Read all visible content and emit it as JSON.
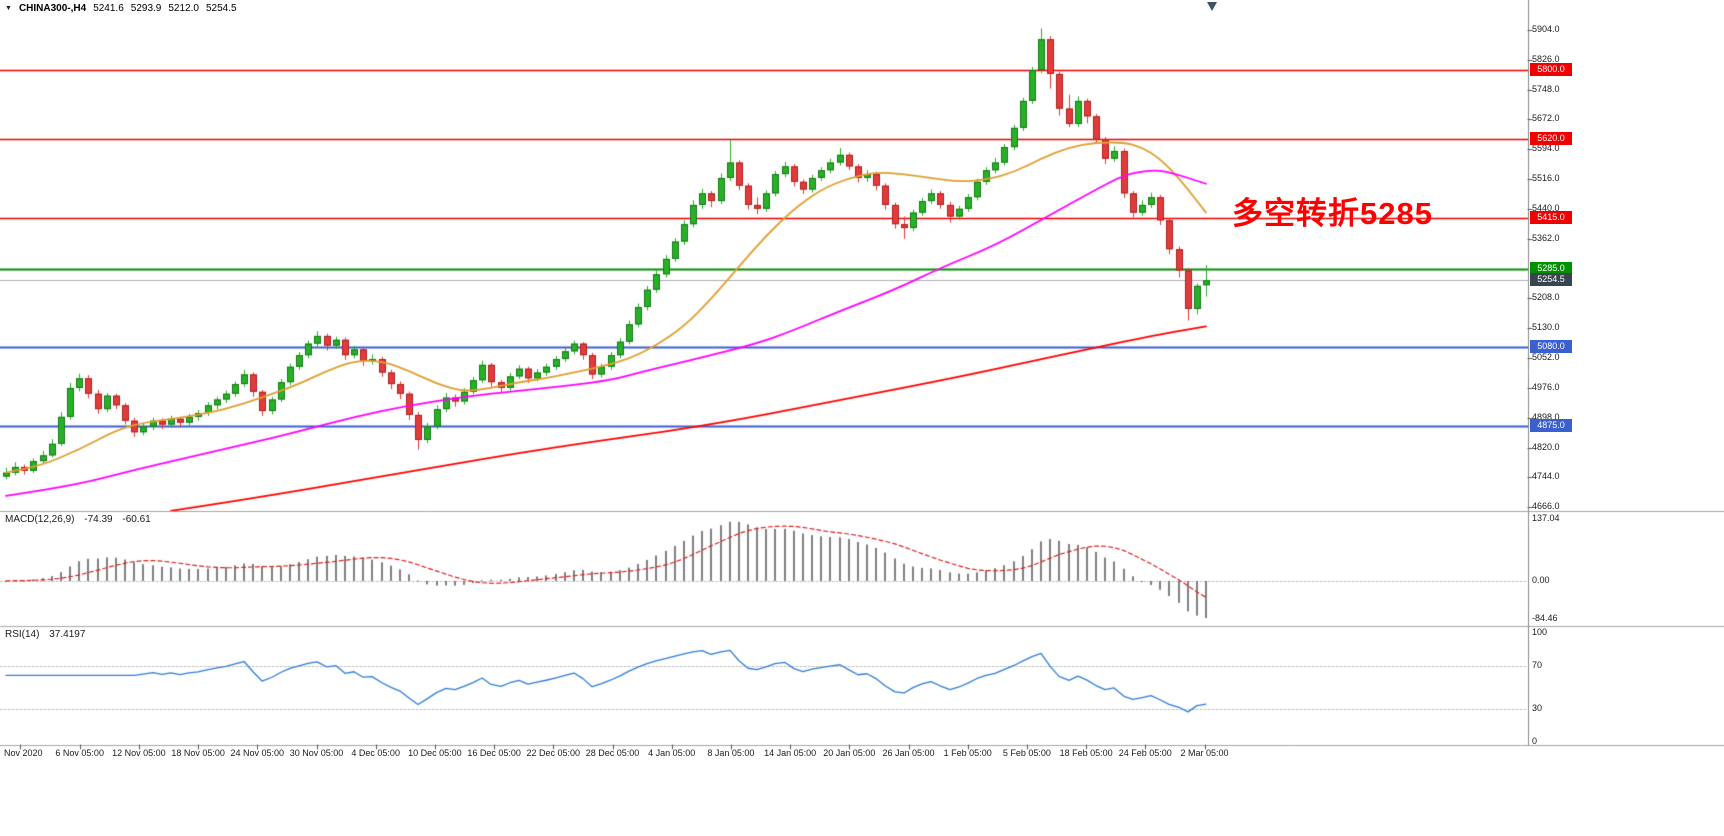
{
  "header": {
    "title": "CHINA300-,H4",
    "open": "5241.6",
    "high": "5293.9",
    "low": "5212.0",
    "close": "5254.5"
  },
  "colors": {
    "bull": "#28b028",
    "bull_border": "#157a15",
    "bear": "#e23b3b",
    "bear_border": "#b02020",
    "current_price_line": "#b0b0b0",
    "separator": "#a6a6a6",
    "axis_line": "#888888",
    "grid_dotted": "#c0c0c0"
  },
  "chart_data": {
    "type": "candlestick",
    "symbol": "CHINA300-",
    "timeframe": "H4",
    "price_range": {
      "min": 4666.0,
      "max": 5904.0
    },
    "y_ticks": [
      "5904.0",
      "5826.0",
      "5748.0",
      "5672.0",
      "5594.0",
      "5516.0",
      "5440.0",
      "5362.0",
      "5208.0",
      "5130.0",
      "5052.0",
      "4976.0",
      "4898.0",
      "4820.0",
      "4744.0",
      "4666.0"
    ],
    "x_labels": [
      "Nov 2020",
      "6 Nov 05:00",
      "12 Nov 05:00",
      "18 Nov 05:00",
      "24 Nov 05:00",
      "30 Nov 05:00",
      "4 Dec 05:00",
      "10 Dec 05:00",
      "16 Dec 05:00",
      "22 Dec 05:00",
      "28 Dec 05:00",
      "4 Jan 05:00",
      "8 Jan 05:00",
      "14 Jan 05:00",
      "20 Jan 05:00",
      "26 Jan 05:00",
      "1 Feb 05:00",
      "5 Feb 05:00",
      "18 Feb 05:00",
      "24 Feb 05:00",
      "2 Mar 05:00"
    ],
    "current_price": {
      "value": 5254.5,
      "label": "5254.5",
      "badge_color": "#36454f"
    },
    "levels": [
      {
        "price": 5800.0,
        "label": "5800.0",
        "color": "#f00000",
        "width": 1.5
      },
      {
        "price": 5620.0,
        "label": "5620.0",
        "color": "#f00000",
        "width": 1.5
      },
      {
        "price": 5415.0,
        "label": "5415.0",
        "color": "#f00000",
        "width": 1.5
      },
      {
        "price": 5285.0,
        "label": "5285.0",
        "color": "#009000",
        "width": 2
      },
      {
        "price": 5080.0,
        "label": "5080.0",
        "color": "#3a5fd0",
        "width": 1.8
      },
      {
        "price": 4875.0,
        "label": "4875.0",
        "color": "#3a5fd0",
        "width": 1.8
      }
    ],
    "annotation": {
      "text": "多空转折5285",
      "color": "#ff0000"
    },
    "candles": [
      [
        4745,
        4768,
        4738,
        4755
      ],
      [
        4755,
        4782,
        4748,
        4770
      ],
      [
        4770,
        4776,
        4750,
        4760
      ],
      [
        4760,
        4792,
        4754,
        4785
      ],
      [
        4785,
        4812,
        4778,
        4800
      ],
      [
        4800,
        4842,
        4795,
        4830
      ],
      [
        4830,
        4912,
        4824,
        4900
      ],
      [
        4900,
        4988,
        4893,
        4975
      ],
      [
        4975,
        5012,
        4966,
        5000
      ],
      [
        5000,
        5008,
        4948,
        4960
      ],
      [
        4960,
        4970,
        4908,
        4920
      ],
      [
        4920,
        4962,
        4912,
        4955
      ],
      [
        4955,
        4960,
        4920,
        4930
      ],
      [
        4930,
        4936,
        4880,
        4890
      ],
      [
        4890,
        4898,
        4848,
        4860
      ],
      [
        4860,
        4884,
        4852,
        4875
      ],
      [
        4875,
        4898,
        4866,
        4890
      ],
      [
        4890,
        4896,
        4868,
        4880
      ],
      [
        4880,
        4903,
        4872,
        4895
      ],
      [
        4895,
        4900,
        4872,
        4885
      ],
      [
        4885,
        4908,
        4878,
        4900
      ],
      [
        4900,
        4918,
        4890,
        4910
      ],
      [
        4910,
        4938,
        4902,
        4930
      ],
      [
        4930,
        4952,
        4920,
        4945
      ],
      [
        4945,
        4968,
        4936,
        4960
      ],
      [
        4960,
        4992,
        4952,
        4985
      ],
      [
        4985,
        5022,
        4978,
        5010
      ],
      [
        5010,
        5015,
        4952,
        4965
      ],
      [
        4965,
        4970,
        4902,
        4915
      ],
      [
        4915,
        4952,
        4906,
        4945
      ],
      [
        4945,
        4998,
        4938,
        4990
      ],
      [
        4990,
        5038,
        4982,
        5030
      ],
      [
        5030,
        5068,
        5022,
        5060
      ],
      [
        5060,
        5098,
        5052,
        5090
      ],
      [
        5090,
        5122,
        5082,
        5110
      ],
      [
        5110,
        5116,
        5072,
        5085
      ],
      [
        5085,
        5108,
        5076,
        5100
      ],
      [
        5100,
        5106,
        5048,
        5060
      ],
      [
        5060,
        5084,
        5052,
        5075
      ],
      [
        5075,
        5080,
        5032,
        5045
      ],
      [
        5045,
        5062,
        5036,
        5050
      ],
      [
        5050,
        5056,
        5004,
        5015
      ],
      [
        5015,
        5022,
        4972,
        4985
      ],
      [
        4985,
        4992,
        4946,
        4960
      ],
      [
        4960,
        4966,
        4892,
        4905
      ],
      [
        4905,
        4912,
        4815,
        4840
      ],
      [
        4840,
        4884,
        4832,
        4875
      ],
      [
        4875,
        4930,
        4868,
        4920
      ],
      [
        4920,
        4962,
        4912,
        4950
      ],
      [
        4950,
        4958,
        4926,
        4940
      ],
      [
        4940,
        4974,
        4932,
        4965
      ],
      [
        4965,
        5004,
        4958,
        4995
      ],
      [
        4995,
        5046,
        4988,
        5035
      ],
      [
        5035,
        5040,
        4978,
        4990
      ],
      [
        4990,
        4996,
        4962,
        4975
      ],
      [
        4975,
        5014,
        4968,
        5005
      ],
      [
        5005,
        5034,
        4998,
        5025
      ],
      [
        5025,
        5030,
        4988,
        5000
      ],
      [
        5000,
        5024,
        4992,
        5015
      ],
      [
        5015,
        5038,
        5006,
        5030
      ],
      [
        5030,
        5058,
        5022,
        5050
      ],
      [
        5050,
        5078,
        5042,
        5070
      ],
      [
        5070,
        5098,
        5062,
        5090
      ],
      [
        5090,
        5094,
        5048,
        5060
      ],
      [
        5060,
        5066,
        4998,
        5010
      ],
      [
        5010,
        5038,
        5002,
        5030
      ],
      [
        5030,
        5068,
        5022,
        5060
      ],
      [
        5060,
        5104,
        5052,
        5095
      ],
      [
        5095,
        5150,
        5088,
        5140
      ],
      [
        5140,
        5194,
        5132,
        5185
      ],
      [
        5185,
        5240,
        5176,
        5230
      ],
      [
        5230,
        5280,
        5222,
        5270
      ],
      [
        5270,
        5320,
        5262,
        5310
      ],
      [
        5310,
        5364,
        5302,
        5355
      ],
      [
        5355,
        5410,
        5346,
        5400
      ],
      [
        5400,
        5462,
        5392,
        5450
      ],
      [
        5450,
        5492,
        5440,
        5480
      ],
      [
        5480,
        5486,
        5444,
        5460
      ],
      [
        5460,
        5532,
        5452,
        5520
      ],
      [
        5520,
        5618,
        5512,
        5560
      ],
      [
        5560,
        5566,
        5488,
        5500
      ],
      [
        5500,
        5506,
        5438,
        5450
      ],
      [
        5450,
        5470,
        5426,
        5440
      ],
      [
        5440,
        5488,
        5432,
        5480
      ],
      [
        5480,
        5538,
        5472,
        5530
      ],
      [
        5530,
        5562,
        5522,
        5550
      ],
      [
        5550,
        5556,
        5498,
        5510
      ],
      [
        5510,
        5516,
        5478,
        5490
      ],
      [
        5490,
        5528,
        5482,
        5520
      ],
      [
        5520,
        5548,
        5512,
        5540
      ],
      [
        5540,
        5570,
        5532,
        5560
      ],
      [
        5560,
        5598,
        5552,
        5580
      ],
      [
        5580,
        5586,
        5540,
        5550
      ],
      [
        5550,
        5556,
        5508,
        5520
      ],
      [
        5520,
        5540,
        5510,
        5530
      ],
      [
        5530,
        5536,
        5488,
        5500
      ],
      [
        5500,
        5506,
        5438,
        5450
      ],
      [
        5450,
        5456,
        5388,
        5400
      ],
      [
        5400,
        5420,
        5362,
        5390
      ],
      [
        5390,
        5438,
        5382,
        5430
      ],
      [
        5430,
        5468,
        5422,
        5460
      ],
      [
        5460,
        5490,
        5452,
        5480
      ],
      [
        5480,
        5486,
        5440,
        5450
      ],
      [
        5450,
        5458,
        5404,
        5420
      ],
      [
        5420,
        5448,
        5412,
        5440
      ],
      [
        5440,
        5478,
        5432,
        5470
      ],
      [
        5470,
        5518,
        5462,
        5510
      ],
      [
        5510,
        5548,
        5502,
        5540
      ],
      [
        5540,
        5572,
        5532,
        5560
      ],
      [
        5560,
        5608,
        5552,
        5600
      ],
      [
        5600,
        5658,
        5592,
        5650
      ],
      [
        5650,
        5728,
        5642,
        5720
      ],
      [
        5720,
        5808,
        5712,
        5800
      ],
      [
        5800,
        5908,
        5792,
        5880
      ],
      [
        5880,
        5888,
        5752,
        5790
      ],
      [
        5790,
        5796,
        5682,
        5700
      ],
      [
        5700,
        5736,
        5652,
        5660
      ],
      [
        5660,
        5732,
        5652,
        5720
      ],
      [
        5720,
        5726,
        5662,
        5680
      ],
      [
        5680,
        5686,
        5608,
        5620
      ],
      [
        5620,
        5626,
        5556,
        5570
      ],
      [
        5570,
        5602,
        5562,
        5590
      ],
      [
        5590,
        5596,
        5468,
        5480
      ],
      [
        5480,
        5486,
        5418,
        5430
      ],
      [
        5430,
        5462,
        5422,
        5450
      ],
      [
        5450,
        5482,
        5442,
        5470
      ],
      [
        5470,
        5476,
        5398,
        5410
      ],
      [
        5410,
        5416,
        5322,
        5335
      ],
      [
        5335,
        5342,
        5262,
        5280
      ],
      [
        5280,
        5286,
        5150,
        5180
      ],
      [
        5180,
        5246,
        5166,
        5240
      ],
      [
        5241.6,
        5293.9,
        5212.0,
        5254.5
      ]
    ],
    "moving_averages": [
      {
        "name": "ma-fast",
        "color": "#e0a030",
        "width": 1.8,
        "points": [
          [
            0,
            4755
          ],
          [
            4,
            4775
          ],
          [
            8,
            4815
          ],
          [
            12,
            4865
          ],
          [
            15,
            4885
          ],
          [
            20,
            4900
          ],
          [
            24,
            4920
          ],
          [
            28,
            4950
          ],
          [
            32,
            4985
          ],
          [
            35,
            5020
          ],
          [
            38,
            5045
          ],
          [
            41,
            5045
          ],
          [
            44,
            5020
          ],
          [
            47,
            4985
          ],
          [
            50,
            4965
          ],
          [
            53,
            4975
          ],
          [
            56,
            4990
          ],
          [
            59,
            5000
          ],
          [
            62,
            5015
          ],
          [
            65,
            5030
          ],
          [
            68,
            5050
          ],
          [
            71,
            5085
          ],
          [
            74,
            5135
          ],
          [
            77,
            5205
          ],
          [
            80,
            5290
          ],
          [
            83,
            5370
          ],
          [
            86,
            5440
          ],
          [
            89,
            5490
          ],
          [
            92,
            5520
          ],
          [
            95,
            5535
          ],
          [
            98,
            5530
          ],
          [
            101,
            5520
          ],
          [
            104,
            5510
          ],
          [
            107,
            5515
          ],
          [
            110,
            5535
          ],
          [
            113,
            5570
          ],
          [
            116,
            5600
          ],
          [
            119,
            5612
          ],
          [
            122,
            5612
          ],
          [
            124,
            5600
          ],
          [
            126,
            5570
          ],
          [
            128,
            5520
          ],
          [
            131,
            5430
          ]
        ]
      },
      {
        "name": "ma-medium",
        "color": "#ff00ff",
        "width": 1.8,
        "points": [
          [
            0,
            4695
          ],
          [
            8,
            4725
          ],
          [
            14,
            4762
          ],
          [
            20,
            4795
          ],
          [
            26,
            4828
          ],
          [
            32,
            4862
          ],
          [
            38,
            4900
          ],
          [
            44,
            4930
          ],
          [
            50,
            4952
          ],
          [
            56,
            4968
          ],
          [
            61,
            4980
          ],
          [
            66,
            4995
          ],
          [
            70,
            5020
          ],
          [
            75,
            5048
          ],
          [
            82,
            5090
          ],
          [
            86,
            5125
          ],
          [
            91,
            5175
          ],
          [
            97,
            5230
          ],
          [
            102,
            5286
          ],
          [
            108,
            5345
          ],
          [
            113,
            5411
          ],
          [
            119,
            5490
          ],
          [
            122,
            5528
          ],
          [
            125,
            5541
          ],
          [
            127,
            5536
          ],
          [
            131,
            5505
          ]
        ]
      },
      {
        "name": "ma-slow",
        "color": "#ff0000",
        "width": 1.8,
        "points": [
          [
            18,
            4656
          ],
          [
            30,
            4700
          ],
          [
            45,
            4762
          ],
          [
            60,
            4822
          ],
          [
            76,
            4875
          ],
          [
            90,
            4938
          ],
          [
            105,
            5008
          ],
          [
            115,
            5060
          ],
          [
            125,
            5110
          ],
          [
            131,
            5135
          ]
        ]
      }
    ],
    "indicators": [
      {
        "name": "MACD",
        "label": "MACD(12,26,9)",
        "values": [
          "-74.39",
          "-60.61"
        ],
        "axis": [
          "137.04",
          "0.00",
          "-84.46"
        ],
        "params": {
          "fast": 12,
          "slow": 26,
          "signal": 9
        },
        "histogram_color": "#808080",
        "signal_color": "#dd2222"
      },
      {
        "name": "RSI",
        "label": "RSI(14)",
        "value": "37.4197",
        "axis": [
          "100",
          "70",
          "30",
          "0"
        ],
        "levels": [
          70,
          30
        ],
        "period": 14,
        "line_color": "#2f7ed8"
      }
    ]
  }
}
